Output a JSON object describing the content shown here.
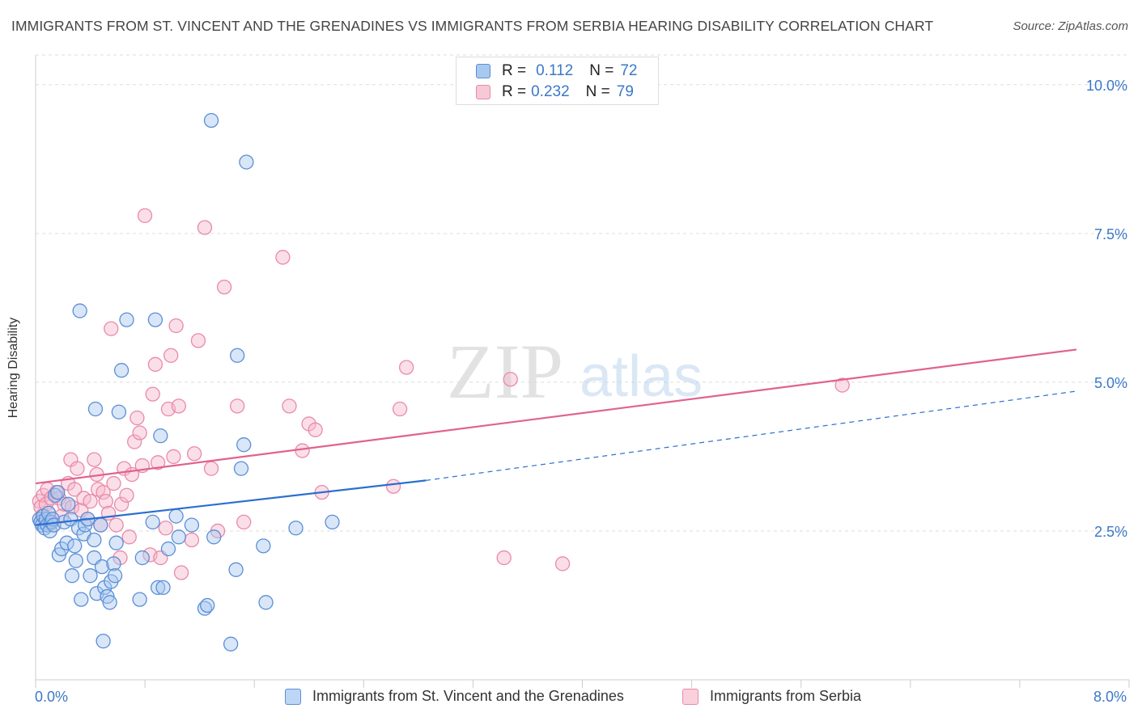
{
  "title": "IMMIGRANTS FROM ST. VINCENT AND THE GRENADINES VS IMMIGRANTS FROM SERBIA HEARING DISABILITY CORRELATION CHART",
  "source": "Source: ZipAtlas.com",
  "watermark": {
    "zip": "ZIP",
    "atlas": "atlas"
  },
  "legend_top": {
    "r_label": "R =",
    "n_label": "N =",
    "series": [
      {
        "r": "0.112",
        "n": "72"
      },
      {
        "r": "0.232",
        "n": "79"
      }
    ]
  },
  "colors": {
    "blue_fill": "#a8c8f0",
    "blue_stroke": "#5b8fd6",
    "blue_line": "#2a6fcf",
    "pink_fill": "#f7b8cb",
    "pink_stroke": "#e98aa8",
    "pink_line": "#e0628f",
    "axis_label": "#3a78c8",
    "grid": "#dddddd"
  },
  "chart_data": {
    "type": "scatter",
    "title": "IMMIGRANTS FROM ST. VINCENT AND THE GRENADINES VS IMMIGRANTS FROM SERBIA HEARING DISABILITY CORRELATION CHART",
    "xlabel": "",
    "ylabel": "Hearing Disability",
    "xlim": [
      0,
      8.0
    ],
    "ylim": [
      0,
      10.5
    ],
    "x_tick_labels": [
      "0.0%",
      "8.0%"
    ],
    "y_ticks": [
      2.5,
      5.0,
      7.5,
      10.0
    ],
    "y_tick_labels": [
      "2.5%",
      "5.0%",
      "7.5%",
      "10.0%"
    ],
    "grid": true,
    "legend_position": "top-center",
    "series": [
      {
        "name": "Immigrants from St. Vincent and the Grenadines",
        "color": "#5b8fd6",
        "R": 0.112,
        "N": 72,
        "trend": {
          "x0": 0.0,
          "y0": 2.6,
          "x1": 3.0,
          "y1": 3.35,
          "dashed_x1": 8.0,
          "dashed_y1": 4.85
        },
        "points": [
          [
            0.03,
            2.7
          ],
          [
            0.04,
            2.65
          ],
          [
            0.05,
            2.6
          ],
          [
            0.06,
            2.75
          ],
          [
            0.07,
            2.55
          ],
          [
            0.08,
            2.7
          ],
          [
            0.09,
            2.6
          ],
          [
            0.1,
            2.8
          ],
          [
            0.11,
            2.5
          ],
          [
            0.12,
            2.65
          ],
          [
            0.13,
            2.7
          ],
          [
            0.14,
            2.6
          ],
          [
            0.15,
            3.1
          ],
          [
            0.17,
            3.15
          ],
          [
            0.18,
            2.1
          ],
          [
            0.2,
            2.2
          ],
          [
            0.22,
            2.65
          ],
          [
            0.24,
            2.3
          ],
          [
            0.25,
            2.95
          ],
          [
            0.27,
            2.7
          ],
          [
            0.28,
            1.75
          ],
          [
            0.3,
            2.25
          ],
          [
            0.31,
            2.0
          ],
          [
            0.33,
            2.55
          ],
          [
            0.34,
            6.2
          ],
          [
            0.35,
            1.35
          ],
          [
            0.37,
            2.45
          ],
          [
            0.38,
            2.6
          ],
          [
            0.4,
            2.7
          ],
          [
            0.42,
            1.75
          ],
          [
            0.45,
            2.05
          ],
          [
            0.46,
            4.55
          ],
          [
            0.47,
            1.45
          ],
          [
            0.5,
            2.6
          ],
          [
            0.51,
            1.9
          ],
          [
            0.52,
            0.65
          ],
          [
            0.53,
            1.55
          ],
          [
            0.55,
            1.4
          ],
          [
            0.57,
            1.3
          ],
          [
            0.58,
            1.65
          ],
          [
            0.6,
            1.95
          ],
          [
            0.61,
            1.75
          ],
          [
            0.62,
            2.3
          ],
          [
            0.64,
            4.5
          ],
          [
            0.66,
            5.2
          ],
          [
            0.7,
            6.05
          ],
          [
            0.8,
            1.35
          ],
          [
            0.82,
            2.05
          ],
          [
            0.9,
            2.65
          ],
          [
            0.92,
            6.05
          ],
          [
            0.94,
            1.55
          ],
          [
            0.96,
            4.1
          ],
          [
            0.98,
            1.55
          ],
          [
            1.02,
            2.2
          ],
          [
            1.08,
            2.75
          ],
          [
            1.1,
            2.4
          ],
          [
            1.2,
            2.6
          ],
          [
            1.3,
            1.2
          ],
          [
            1.32,
            1.25
          ],
          [
            1.35,
            9.4
          ],
          [
            1.37,
            2.4
          ],
          [
            1.5,
            0.6
          ],
          [
            1.54,
            1.85
          ],
          [
            1.58,
            3.55
          ],
          [
            1.6,
            3.95
          ],
          [
            1.62,
            8.7
          ],
          [
            1.75,
            2.25
          ],
          [
            1.77,
            1.3
          ],
          [
            2.0,
            2.55
          ],
          [
            2.28,
            2.65
          ],
          [
            1.55,
            5.45
          ],
          [
            0.45,
            2.35
          ]
        ]
      },
      {
        "name": "Immigrants from Serbia",
        "color": "#e98aa8",
        "R": 0.232,
        "N": 79,
        "trend": {
          "x0": 0.0,
          "y0": 3.3,
          "x1": 8.0,
          "y1": 5.55
        },
        "points": [
          [
            0.03,
            3.0
          ],
          [
            0.04,
            2.9
          ],
          [
            0.05,
            2.75
          ],
          [
            0.06,
            3.1
          ],
          [
            0.07,
            2.65
          ],
          [
            0.08,
            2.95
          ],
          [
            0.09,
            3.2
          ],
          [
            0.1,
            2.8
          ],
          [
            0.12,
            3.05
          ],
          [
            0.13,
            2.7
          ],
          [
            0.14,
            2.6
          ],
          [
            0.16,
            3.15
          ],
          [
            0.18,
            3.05
          ],
          [
            0.2,
            2.75
          ],
          [
            0.22,
            2.95
          ],
          [
            0.25,
            3.3
          ],
          [
            0.27,
            3.7
          ],
          [
            0.28,
            2.9
          ],
          [
            0.3,
            3.2
          ],
          [
            0.32,
            3.55
          ],
          [
            0.35,
            2.85
          ],
          [
            0.37,
            3.05
          ],
          [
            0.4,
            2.7
          ],
          [
            0.42,
            3.0
          ],
          [
            0.45,
            3.7
          ],
          [
            0.47,
            3.45
          ],
          [
            0.48,
            3.2
          ],
          [
            0.5,
            2.6
          ],
          [
            0.52,
            3.15
          ],
          [
            0.54,
            3.0
          ],
          [
            0.56,
            2.8
          ],
          [
            0.58,
            5.9
          ],
          [
            0.6,
            3.3
          ],
          [
            0.62,
            2.6
          ],
          [
            0.65,
            2.05
          ],
          [
            0.66,
            2.95
          ],
          [
            0.68,
            3.55
          ],
          [
            0.7,
            3.1
          ],
          [
            0.72,
            2.4
          ],
          [
            0.74,
            3.45
          ],
          [
            0.76,
            4.0
          ],
          [
            0.78,
            4.4
          ],
          [
            0.8,
            4.15
          ],
          [
            0.82,
            3.6
          ],
          [
            0.84,
            7.8
          ],
          [
            0.88,
            2.1
          ],
          [
            0.9,
            4.8
          ],
          [
            0.92,
            5.3
          ],
          [
            0.94,
            3.65
          ],
          [
            0.96,
            2.05
          ],
          [
            1.0,
            2.55
          ],
          [
            1.02,
            4.55
          ],
          [
            1.04,
            5.45
          ],
          [
            1.06,
            3.75
          ],
          [
            1.08,
            5.95
          ],
          [
            1.1,
            4.6
          ],
          [
            1.12,
            1.8
          ],
          [
            1.2,
            2.35
          ],
          [
            1.22,
            3.8
          ],
          [
            1.25,
            5.7
          ],
          [
            1.3,
            7.6
          ],
          [
            1.35,
            3.55
          ],
          [
            1.4,
            2.5
          ],
          [
            1.45,
            6.6
          ],
          [
            1.55,
            4.6
          ],
          [
            1.6,
            2.65
          ],
          [
            1.9,
            7.1
          ],
          [
            1.95,
            4.6
          ],
          [
            2.05,
            3.85
          ],
          [
            2.1,
            4.3
          ],
          [
            2.15,
            4.2
          ],
          [
            2.2,
            3.15
          ],
          [
            2.75,
            3.25
          ],
          [
            2.8,
            4.55
          ],
          [
            2.85,
            5.25
          ],
          [
            3.6,
            2.05
          ],
          [
            3.65,
            5.05
          ],
          [
            4.05,
            1.95
          ],
          [
            6.2,
            4.95
          ]
        ]
      }
    ]
  }
}
